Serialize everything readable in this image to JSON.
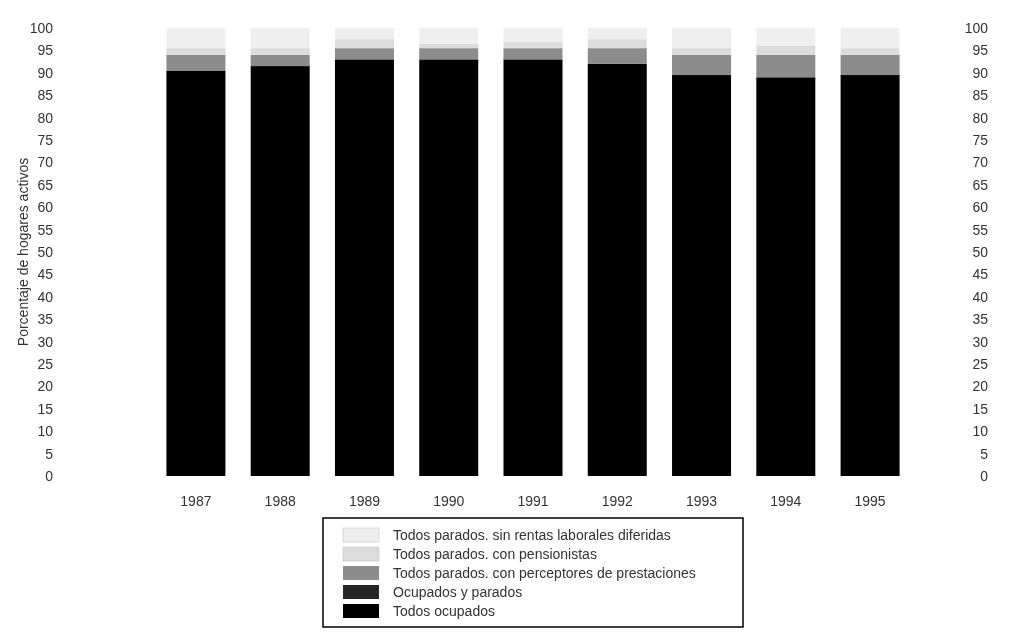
{
  "chart_data": {
    "type": "bar",
    "stacked": true,
    "ylabel": "Porcentaje de hogares activos",
    "categories": [
      "1987",
      "1988",
      "1989",
      "1990",
      "1991",
      "1992",
      "1993",
      "1994",
      "1995"
    ],
    "series": [
      {
        "name": "Todos ocupados",
        "color": "#000000",
        "values": [
          90.5,
          91.5,
          93,
          93,
          93,
          92,
          89.5,
          89,
          89.5
        ]
      },
      {
        "name": "Ocupados y parados",
        "color": "#262626",
        "values": [
          null,
          null,
          null,
          null,
          null,
          null,
          null,
          null,
          null
        ]
      },
      {
        "name": "Todos parados. con perceptores de prestaciones",
        "color": "#8c8c8c",
        "values": [
          3.5,
          2.5,
          2.5,
          2.5,
          2.5,
          3.5,
          4.5,
          5,
          4.5
        ]
      },
      {
        "name": "Todos parados. con pensionistas",
        "color": "#dcdcdc",
        "values": [
          1.5,
          1.5,
          2,
          1,
          1.5,
          2,
          1.5,
          2,
          1.5
        ]
      },
      {
        "name": "Todos parados. sin rentas laborales diferidas",
        "color": "#efefef",
        "values": [
          4.5,
          4.5,
          2.5,
          3.5,
          3,
          2.5,
          4.5,
          4,
          4.5
        ]
      }
    ],
    "ylim": [
      0,
      100
    ],
    "yticks": [
      0,
      5,
      10,
      15,
      20,
      25,
      30,
      35,
      40,
      45,
      50,
      55,
      60,
      65,
      70,
      75,
      80,
      85,
      90,
      95,
      100
    ],
    "y2lim": [
      0,
      100
    ],
    "y2ticks": [
      0,
      5,
      10,
      15,
      20,
      25,
      30,
      35,
      40,
      45,
      50,
      55,
      60,
      65,
      70,
      75,
      80,
      85,
      90,
      95,
      100
    ],
    "legend": "bottom",
    "grid": false
  }
}
